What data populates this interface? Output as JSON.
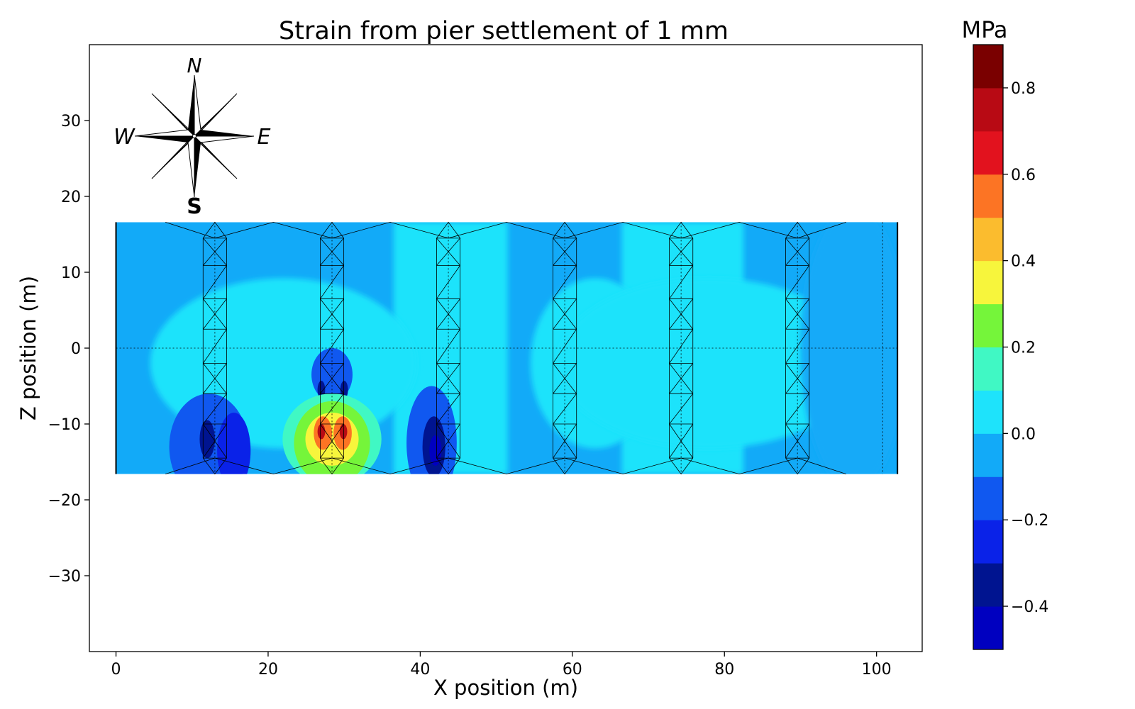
{
  "chart_data": {
    "type": "heatmap",
    "title": "Strain from pier settlement of 1 mm",
    "xlabel": "X position (m)",
    "ylabel": "Z position (m)",
    "xlim": [
      -3.5,
      106
    ],
    "ylim": [
      -40,
      40
    ],
    "x_ticks": [
      0,
      20,
      40,
      60,
      80,
      100
    ],
    "x_tick_labels": [
      "0",
      "20",
      "40",
      "60",
      "80",
      "100"
    ],
    "y_ticks": [
      30,
      20,
      10,
      0,
      -10,
      -20,
      -30
    ],
    "y_tick_labels": [
      "30",
      "20",
      "10",
      "0",
      "−10",
      "−20",
      "−30"
    ],
    "deck_extent": {
      "x": [
        0,
        102.75
      ],
      "z": [
        -16.6,
        16.6
      ]
    },
    "pier_x": [
      13,
      28.4,
      43.7,
      59,
      74.3,
      89.6
    ],
    "pier_half_width": 1.55,
    "colorbar": {
      "label": "MPa",
      "range": [
        -0.5,
        0.9
      ],
      "ticks": [
        0.8,
        0.6,
        0.4,
        0.2,
        0.0,
        -0.2,
        -0.4
      ],
      "tick_labels": [
        "0.8",
        "0.6",
        "0.4",
        "0.2",
        "0.0",
        "−0.2",
        "−0.4"
      ],
      "bands": [
        {
          "from": -0.5,
          "to": -0.4,
          "color": "#0000c0"
        },
        {
          "from": -0.4,
          "to": -0.3,
          "color": "#001490"
        },
        {
          "from": -0.3,
          "to": -0.2,
          "color": "#0a22e8"
        },
        {
          "from": -0.2,
          "to": -0.1,
          "color": "#1058f0"
        },
        {
          "from": -0.1,
          "to": 0.0,
          "color": "#12aaf8"
        },
        {
          "from": 0.0,
          "to": 0.1,
          "color": "#1ee3fb"
        },
        {
          "from": 0.1,
          "to": 0.2,
          "color": "#40f8c4"
        },
        {
          "from": 0.2,
          "to": 0.3,
          "color": "#75f53a"
        },
        {
          "from": 0.3,
          "to": 0.4,
          "color": "#f7f53c"
        },
        {
          "from": 0.4,
          "to": 0.5,
          "color": "#fbbc2e"
        },
        {
          "from": 0.5,
          "to": 0.6,
          "color": "#fc7424"
        },
        {
          "from": 0.6,
          "to": 0.7,
          "color": "#e2121e"
        },
        {
          "from": 0.7,
          "to": 0.8,
          "color": "#b80a14"
        },
        {
          "from": 0.8,
          "to": 0.9,
          "color": "#7a0000"
        }
      ]
    },
    "compass": {
      "north": "N",
      "south": "S",
      "east": "E",
      "west": "W"
    }
  }
}
